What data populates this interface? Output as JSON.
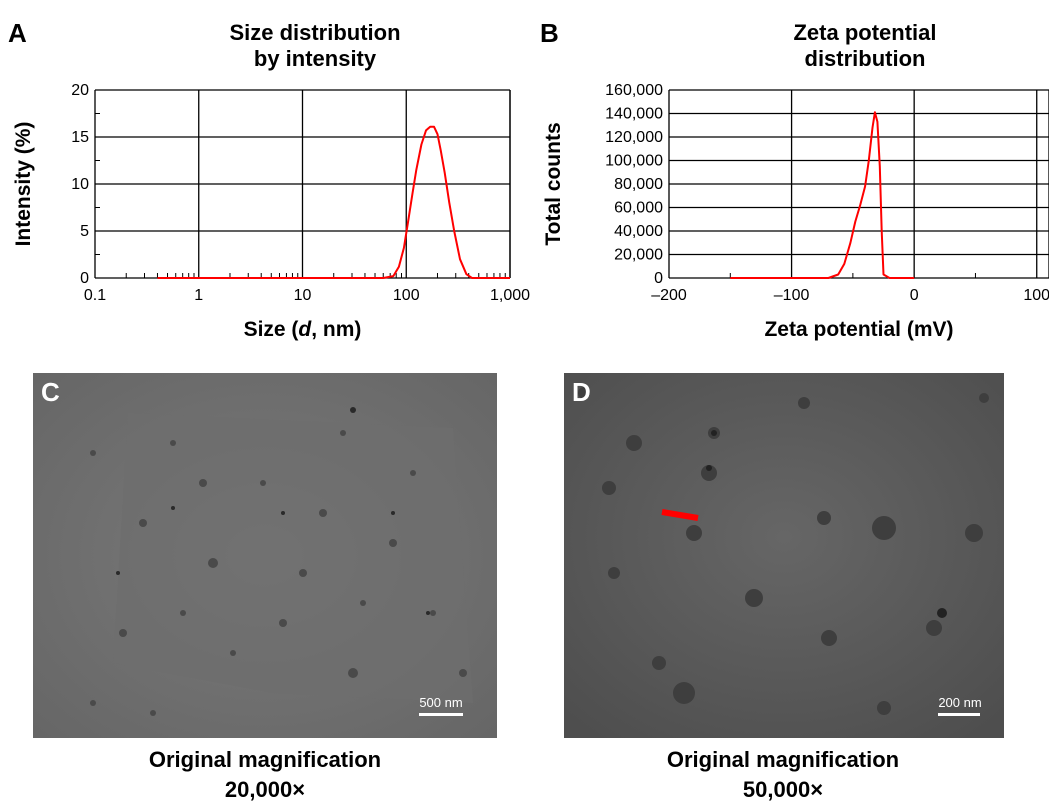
{
  "panel_a": {
    "letter": "A",
    "title_line1": "Size distribution",
    "title_line2": "by intensity"
  },
  "panel_b": {
    "letter": "B",
    "title_line1": "Zeta potential",
    "title_line2": "distribution"
  },
  "panel_c": {
    "letter": "C",
    "scale_label": "500 nm",
    "caption_line1": "Original magnification",
    "caption_line2": "20,000×"
  },
  "panel_d": {
    "letter": "D",
    "scale_label": "200 nm",
    "caption_line1": "Original magnification",
    "caption_line2": "50,000×"
  },
  "colors": {
    "series": "#ff0000",
    "grid": "#000000",
    "arrow": "#ff0000"
  },
  "chart_data": [
    {
      "type": "line",
      "panel": "A",
      "title": "Size distribution by intensity",
      "xlabel_pre": "Size (",
      "xlabel_italic": "d",
      "xlabel_post": ", nm)",
      "ylabel": "Intensity (%)",
      "xscale": "log",
      "xlim": [
        0.1,
        1000
      ],
      "ylim": [
        0,
        20
      ],
      "xticks": [
        0.1,
        1,
        10,
        100,
        1000
      ],
      "xtick_labels": [
        "0.1",
        "1",
        "10",
        "100",
        "1,000"
      ],
      "yticks": [
        0,
        5,
        10,
        15,
        20
      ],
      "ytick_labels": [
        "0",
        "5",
        "10",
        "15",
        "20"
      ],
      "grid": true,
      "series": [
        {
          "x": [
            0.4,
            1,
            10,
            60,
            75,
            85,
            95,
            105,
            115,
            125,
            140,
            155,
            170,
            185,
            200,
            215,
            235,
            260,
            290,
            330,
            380,
            430,
            500,
            1000
          ],
          "y": [
            0,
            0,
            0,
            0,
            0.2,
            1.2,
            3.2,
            6.2,
            9.0,
            11.5,
            14.2,
            15.7,
            16.1,
            16.1,
            15.3,
            13.6,
            11.2,
            8.0,
            5.0,
            2.0,
            0.4,
            0.0,
            0,
            0
          ]
        }
      ]
    },
    {
      "type": "line",
      "panel": "B",
      "title": "Zeta potential distribution",
      "xlabel": "Zeta potential (mV)",
      "ylabel": "Total counts",
      "xlim": [
        -200,
        110
      ],
      "ylim": [
        0,
        160000
      ],
      "xticks": [
        -200,
        -100,
        0,
        100
      ],
      "xtick_labels": [
        "–200",
        "–100",
        "0",
        "100"
      ],
      "yticks": [
        0,
        20000,
        40000,
        60000,
        80000,
        100000,
        120000,
        140000,
        160000
      ],
      "ytick_labels": [
        "0",
        "20,000",
        "40,000",
        "60,000",
        "80,000",
        "100,000",
        "120,000",
        "140,000",
        "160,000"
      ],
      "grid": true,
      "series": [
        {
          "x": [
            -150,
            -100,
            -70,
            -62,
            -57,
            -52,
            -48,
            -44,
            -40,
            -37,
            -34,
            -32,
            -30,
            -28,
            -26.5,
            -25,
            -20,
            0
          ],
          "y": [
            0,
            0,
            0,
            3000,
            12000,
            30000,
            48000,
            62000,
            78000,
            100000,
            128000,
            141000,
            133000,
            95000,
            40000,
            3000,
            0,
            0
          ]
        }
      ]
    }
  ]
}
